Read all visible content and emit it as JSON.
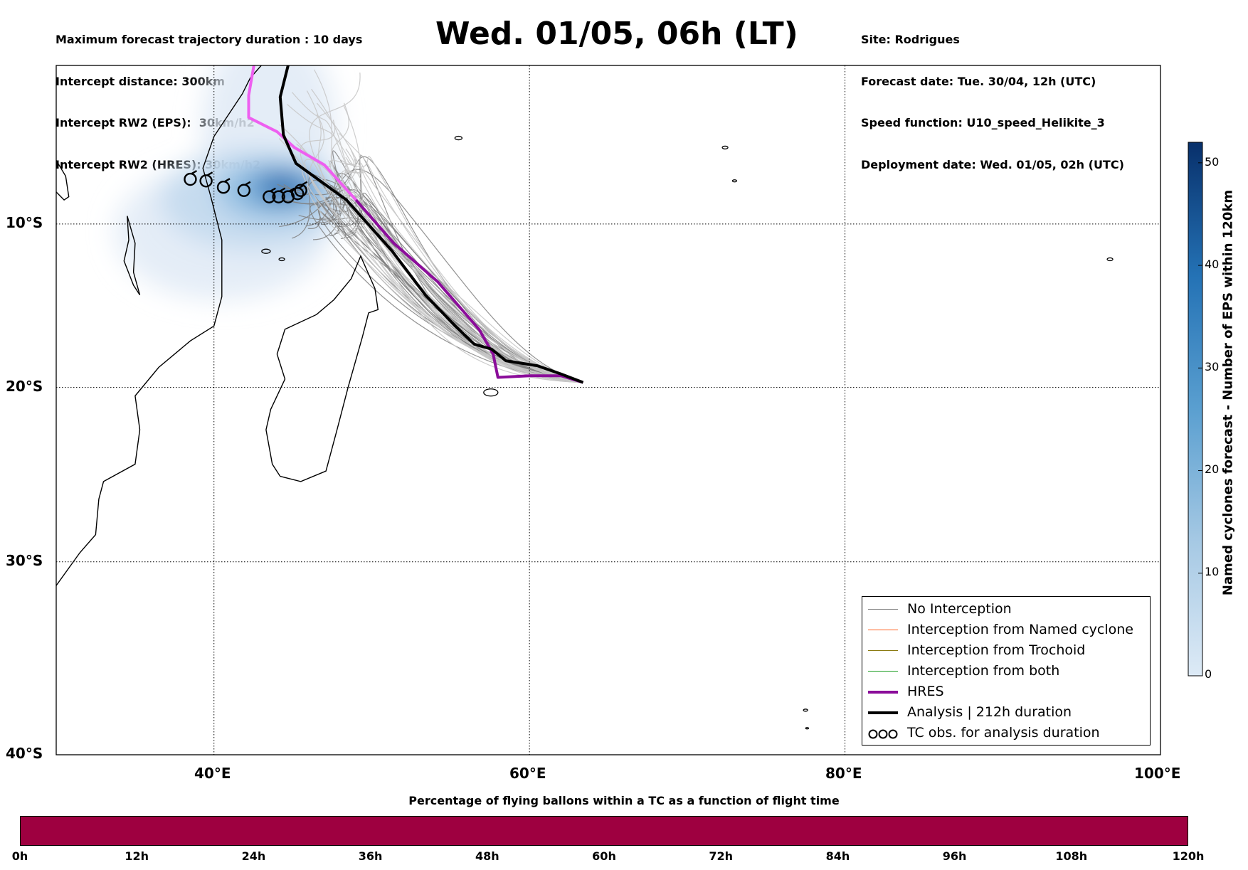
{
  "header": {
    "left_lines": [
      "Maximum forecast trajectory duration : 10 days",
      "Intercept distance: 300km",
      "Intercept RW2 (EPS):  30km/h2",
      "Intercept RW2 (HRES): 30km/h2"
    ],
    "title": "Wed. 01/05, 06h (LT)",
    "right_lines": [
      "Site: Rodrigues",
      "Forecast date: Tue. 30/04, 12h (UTC)",
      "Speed function: U10_speed_Helikite_3",
      "Deployment date: Wed. 01/05, 02h (UTC)"
    ]
  },
  "map": {
    "lon_range": [
      30,
      100
    ],
    "lat_range": [
      -40,
      0
    ],
    "y_labels": [
      "10°S",
      "20°S",
      "30°S",
      "40°S"
    ],
    "x_labels": [
      "40°E",
      "60°E",
      "80°E",
      "100°E"
    ],
    "gridlines": "dotted",
    "release_site": {
      "lon": 63.4,
      "lat": -19.7
    },
    "hres_track": [
      [
        63.4,
        -19.7
      ],
      [
        62.0,
        -19.3
      ],
      [
        60.0,
        -19.3
      ],
      [
        58.0,
        -19.4
      ],
      [
        57.7,
        -18.0
      ],
      [
        56.8,
        -16.5
      ],
      [
        54.2,
        -13.6
      ],
      [
        51.4,
        -11.2
      ],
      [
        49.0,
        -8.5
      ],
      [
        47.0,
        -6.3
      ],
      [
        45.1,
        -5.2
      ],
      [
        44.0,
        -4.2
      ],
      [
        42.2,
        -3.3
      ],
      [
        42.2,
        -1.9
      ],
      [
        42.6,
        0.4
      ],
      [
        42.8,
        0.8
      ]
    ],
    "analysis_track": [
      [
        63.4,
        -19.7
      ],
      [
        62.0,
        -19.2
      ],
      [
        60.5,
        -18.7
      ],
      [
        58.5,
        -18.4
      ],
      [
        57.6,
        -17.7
      ],
      [
        56.5,
        -17.4
      ],
      [
        55.3,
        -16.3
      ],
      [
        53.4,
        -14.4
      ],
      [
        51.3,
        -11.7
      ],
      [
        48.4,
        -8.5
      ],
      [
        45.2,
        -6.2
      ],
      [
        44.4,
        -4.4
      ],
      [
        44.2,
        -2.0
      ],
      [
        44.7,
        0.0
      ],
      [
        44.7,
        0.8
      ]
    ],
    "tc_obs": [
      [
        38.5,
        -7.2
      ],
      [
        39.5,
        -7.3
      ],
      [
        40.6,
        -7.7
      ],
      [
        41.9,
        -7.9
      ],
      [
        43.5,
        -8.3
      ],
      [
        44.1,
        -8.3
      ],
      [
        44.7,
        -8.3
      ],
      [
        45.3,
        -8.1
      ],
      [
        45.5,
        -7.9
      ]
    ],
    "eps_hotspot": {
      "lon": 44.3,
      "lat": -7.7
    },
    "eps_fan_start": {
      "lon": 63.4,
      "lat": -19.7
    },
    "colors": {
      "no_interception": "#808080",
      "named_cyclone": "#ff6020",
      "trochoid": "#8a7a10",
      "both": "#1a9c20",
      "hres": "#8b0d9a",
      "hres_north": "#ee5ff0",
      "analysis": "#000000",
      "ensemble_light": "#c8c8c8"
    }
  },
  "colorbar": {
    "title": "Named cyclones forecast - Number of EPS within 120km",
    "range": [
      0,
      52
    ],
    "ticks": [
      "0",
      "10",
      "20",
      "30",
      "40",
      "50"
    ],
    "colormap": [
      "#ddeaf6",
      "#a6c9e4",
      "#5a9fd0",
      "#2472b5",
      "#08306b"
    ]
  },
  "legend": {
    "entries": [
      {
        "label": "No Interception",
        "color": "#808080",
        "style": "thin"
      },
      {
        "label": "Interception from Named cyclone",
        "color": "#ff6020",
        "style": "thin"
      },
      {
        "label": "Interception from Trochoid",
        "color": "#8a7a10",
        "style": "thin"
      },
      {
        "label": "Interception from both",
        "color": "#1a9c20",
        "style": "thin"
      },
      {
        "label": "HRES",
        "color": "#8b0d9a",
        "style": "thick"
      },
      {
        "label": "Analysis | 212h duration",
        "color": "#000000",
        "style": "thick"
      },
      {
        "label": "TC obs. for analysis duration",
        "color": "#000000",
        "style": "tc-icon"
      }
    ]
  },
  "bottom_chart": {
    "title": "Percentage of flying ballons within a TC as a function of flight time",
    "tick_labels": [
      "0h",
      "12h",
      "24h",
      "36h",
      "48h",
      "60h",
      "72h",
      "84h",
      "96h",
      "108h",
      "120h"
    ],
    "bar_color": "#9e0040"
  }
}
